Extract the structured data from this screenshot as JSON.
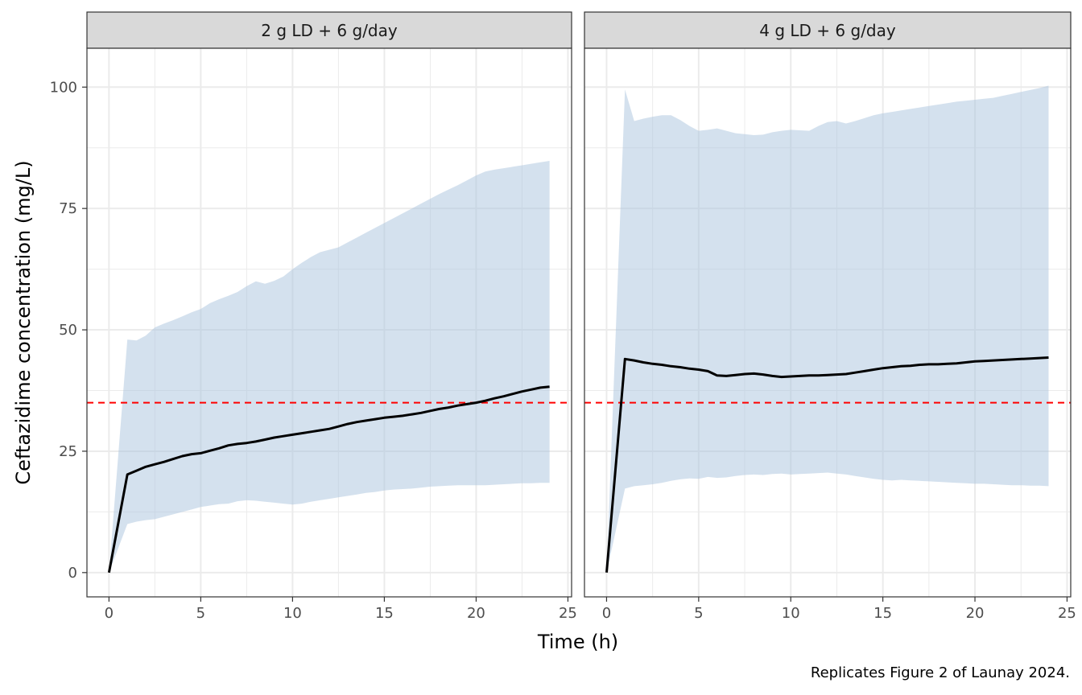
{
  "chart_data": {
    "type": "area",
    "xlabel": "Time (h)",
    "ylabel": "Ceftazidime concentration (mg/L)",
    "caption": "Replicates Figure 2 of Launay 2024.",
    "xlim": [
      -1.2,
      25.2
    ],
    "ylim": [
      -5,
      108
    ],
    "x_ticks": [
      0,
      5,
      10,
      15,
      20,
      25
    ],
    "y_ticks": [
      0,
      25,
      50,
      75,
      100
    ],
    "threshold": {
      "y": 35,
      "color": "#ff0000",
      "style": "dashed"
    },
    "band_color": "#a9c3de",
    "line_color": "#000000",
    "grid": true,
    "panels": [
      {
        "title": "2 g LD + 6 g/day",
        "median": {
          "x": [
            0,
            1,
            1.5,
            2,
            2.5,
            3,
            3.5,
            4,
            4.5,
            5,
            5.5,
            6,
            6.5,
            7,
            7.5,
            8,
            8.5,
            9,
            9.5,
            10,
            10.5,
            11,
            11.5,
            12,
            12.5,
            13,
            13.5,
            14,
            14.5,
            15,
            15.5,
            16,
            16.5,
            17,
            17.5,
            18,
            18.5,
            19,
            19.5,
            20,
            20.5,
            21,
            21.5,
            22,
            22.5,
            23,
            23.5,
            24
          ],
          "y": [
            0,
            20.2,
            21,
            21.8,
            22.3,
            22.8,
            23.4,
            24,
            24.4,
            24.6,
            25.1,
            25.6,
            26.2,
            26.5,
            26.7,
            27,
            27.4,
            27.8,
            28.1,
            28.4,
            28.7,
            29,
            29.3,
            29.6,
            30.1,
            30.6,
            31,
            31.3,
            31.6,
            31.9,
            32.1,
            32.3,
            32.6,
            32.9,
            33.3,
            33.7,
            34,
            34.4,
            34.7,
            35,
            35.4,
            35.9,
            36.3,
            36.8,
            37.3,
            37.7,
            38.1,
            38.3
          ]
        },
        "band": {
          "x": [
            0,
            1,
            1.5,
            2,
            2.5,
            3,
            3.5,
            4,
            4.5,
            5,
            5.5,
            6,
            6.5,
            7,
            7.5,
            8,
            8.5,
            9,
            9.5,
            10,
            10.5,
            11,
            11.5,
            12,
            12.5,
            13,
            13.5,
            14,
            14.5,
            15,
            15.5,
            16,
            16.5,
            17,
            17.5,
            18,
            18.5,
            19,
            19.5,
            20,
            20.5,
            21,
            21.5,
            22,
            22.5,
            23,
            23.5,
            24
          ],
          "lower": [
            0,
            10,
            10.5,
            10.8,
            11,
            11.5,
            12,
            12.5,
            13,
            13.5,
            13.8,
            14.1,
            14.2,
            14.7,
            14.9,
            14.8,
            14.6,
            14.4,
            14.2,
            14,
            14.2,
            14.6,
            14.9,
            15.2,
            15.5,
            15.8,
            16.1,
            16.4,
            16.6,
            16.9,
            17.1,
            17.2,
            17.3,
            17.5,
            17.7,
            17.8,
            17.9,
            18,
            18,
            18,
            18,
            18.1,
            18.2,
            18.3,
            18.4,
            18.4,
            18.5,
            18.5
          ],
          "upper": [
            0,
            48,
            47.8,
            48.8,
            50.5,
            51.3,
            52,
            52.8,
            53.6,
            54.3,
            55.5,
            56.3,
            57,
            57.8,
            59,
            60,
            59.5,
            60.1,
            61,
            62.5,
            63.8,
            65,
            66,
            66.5,
            67,
            68,
            69,
            70,
            71,
            72,
            73,
            74,
            75,
            76,
            77,
            78,
            78.9,
            79.8,
            80.8,
            81.8,
            82.6,
            83,
            83.3,
            83.6,
            83.9,
            84.2,
            84.5,
            84.8
          ]
        }
      },
      {
        "title": "4 g LD + 6 g/day",
        "median": {
          "x": [
            0,
            1,
            1.5,
            2,
            2.5,
            3,
            3.5,
            4,
            4.5,
            5,
            5.5,
            6,
            6.5,
            7,
            7.5,
            8,
            8.5,
            9,
            9.5,
            10,
            10.5,
            11,
            11.5,
            12,
            12.5,
            13,
            13.5,
            14,
            14.5,
            15,
            15.5,
            16,
            16.5,
            17,
            17.5,
            18,
            18.5,
            19,
            19.5,
            20,
            20.5,
            21,
            21.5,
            22,
            22.5,
            23,
            23.5,
            24
          ],
          "y": [
            0,
            44,
            43.7,
            43.3,
            43,
            42.8,
            42.5,
            42.3,
            42,
            41.8,
            41.5,
            40.6,
            40.5,
            40.7,
            40.9,
            41,
            40.8,
            40.5,
            40.3,
            40.4,
            40.5,
            40.6,
            40.6,
            40.7,
            40.8,
            40.9,
            41.2,
            41.5,
            41.8,
            42.1,
            42.3,
            42.5,
            42.6,
            42.8,
            42.9,
            42.9,
            43,
            43.1,
            43.3,
            43.5,
            43.6,
            43.7,
            43.8,
            43.9,
            44,
            44.1,
            44.2,
            44.3
          ]
        },
        "band": {
          "x": [
            0,
            1,
            1.5,
            2,
            2.5,
            3,
            3.5,
            4,
            4.5,
            5,
            5.5,
            6,
            6.5,
            7,
            7.5,
            8,
            8.5,
            9,
            9.5,
            10,
            10.5,
            11,
            11.5,
            12,
            12.5,
            13,
            13.5,
            14,
            14.5,
            15,
            15.5,
            16,
            16.5,
            17,
            17.5,
            18,
            18.5,
            19,
            19.5,
            20,
            20.5,
            21,
            21.5,
            22,
            22.5,
            23,
            23.5,
            24
          ],
          "lower": [
            0,
            17.3,
            17.8,
            18,
            18.2,
            18.5,
            18.9,
            19.2,
            19.4,
            19.3,
            19.7,
            19.5,
            19.6,
            19.9,
            20.1,
            20.2,
            20.1,
            20.3,
            20.4,
            20.2,
            20.3,
            20.4,
            20.5,
            20.6,
            20.4,
            20.2,
            19.9,
            19.6,
            19.3,
            19.1,
            19,
            19.1,
            19,
            18.9,
            18.8,
            18.7,
            18.6,
            18.5,
            18.4,
            18.3,
            18.3,
            18.2,
            18.1,
            18,
            18,
            17.9,
            17.9,
            17.8
          ]
        },
        "upper": null
      }
    ]
  }
}
